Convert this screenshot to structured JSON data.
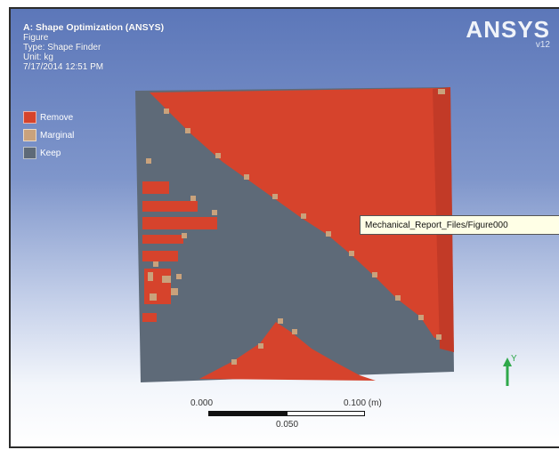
{
  "info": {
    "title": "A: Shape Optimization (ANSYS)",
    "line_figure": "Figure",
    "line_type": "Type: Shape Finder",
    "line_unit": "Unit: kg",
    "line_date": "7/17/2014 12:51 PM"
  },
  "legend": {
    "items": [
      {
        "label": "Remove",
        "color": "#d6432c"
      },
      {
        "label": "Marginal",
        "color": "#c9a27c"
      },
      {
        "label": "Keep",
        "color": "#5e6a78"
      }
    ]
  },
  "brand": {
    "name": "ANSYS",
    "version": "v12"
  },
  "tooltip": {
    "text": "Mechanical_Report_Files/Figure000"
  },
  "scale": {
    "start": "0.000",
    "end": "0.100 (m)",
    "mid": "0.050"
  },
  "triad": {
    "y_label": "Y"
  },
  "colors": {
    "remove": "#d6432c",
    "marginal": "#c9a27c",
    "keep": "#5e6a78",
    "triad_y": "#2fa84a",
    "triad_x": "#d13a2a",
    "triad_z": "#21c2c9"
  }
}
